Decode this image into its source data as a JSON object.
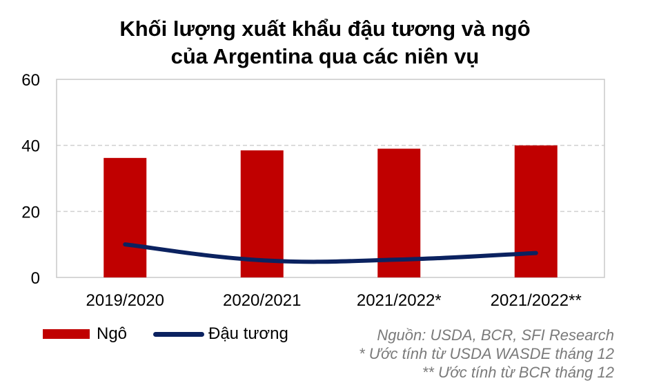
{
  "colors": {
    "bar": "#c00000",
    "line": "#0b2260",
    "grid": "#d0d0d0",
    "frame": "#c8c8c8",
    "note": "#7a7a7a"
  },
  "chart_data": {
    "type": "bar",
    "title_lines": [
      "Khối lượng xuất khẩu đậu tương và ngô",
      "của Argentina qua các niên vụ"
    ],
    "categories": [
      "2019/2020",
      "2020/2021",
      "2021/2022*",
      "2021/2022**"
    ],
    "series": [
      {
        "name": "Ngô",
        "type": "bar",
        "values": [
          36.2,
          38.5,
          39.0,
          40.0
        ]
      },
      {
        "name": "Đậu tương",
        "type": "line",
        "values": [
          10.0,
          5.2,
          5.4,
          7.4
        ]
      }
    ],
    "ylim": [
      0,
      60
    ],
    "yticks": [
      0,
      20,
      40,
      60
    ],
    "grid": true,
    "legend": "bottom-left"
  },
  "notes": [
    "Nguồn: USDA, BCR, SFI Research",
    "* Ước tính từ USDA WASDE tháng 12",
    "** Ước tính từ BCR tháng 12"
  ]
}
